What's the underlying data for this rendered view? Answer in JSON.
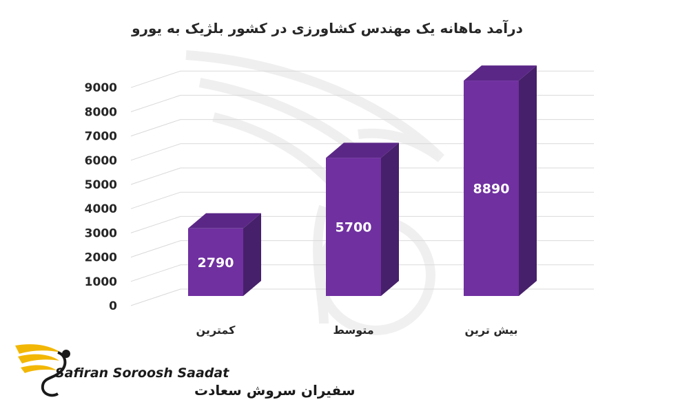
{
  "chart_data": {
    "type": "bar",
    "title": "درآمد ماهانه یک مهندس کشاورزی در کشور بلژیک به یورو",
    "categories": [
      "کمترین",
      "متوسط",
      "بیش ترین"
    ],
    "values": [
      2790,
      5700,
      8890
    ],
    "data_labels": [
      "2790",
      "5700",
      "8890"
    ],
    "y_ticks": [
      "0",
      "1000",
      "2000",
      "3000",
      "4000",
      "5000",
      "6000",
      "7000",
      "8000",
      "9000"
    ],
    "ylim": [
      0,
      10000
    ],
    "grid": true,
    "legend": "none",
    "style": "3d-column"
  },
  "colors": {
    "bar_front": "#7030a0",
    "bar_side": "#46206a",
    "bar_top": "#5b2787",
    "grid": "#d9d9d9",
    "text": "#262626",
    "logo_gold": "#f2b705"
  },
  "brand": {
    "name_en": "Safiran Soroosh Saadat",
    "name_fa": "سفیران سروش سعادت",
    "logo_icon": "phoenix-wing-icon"
  }
}
